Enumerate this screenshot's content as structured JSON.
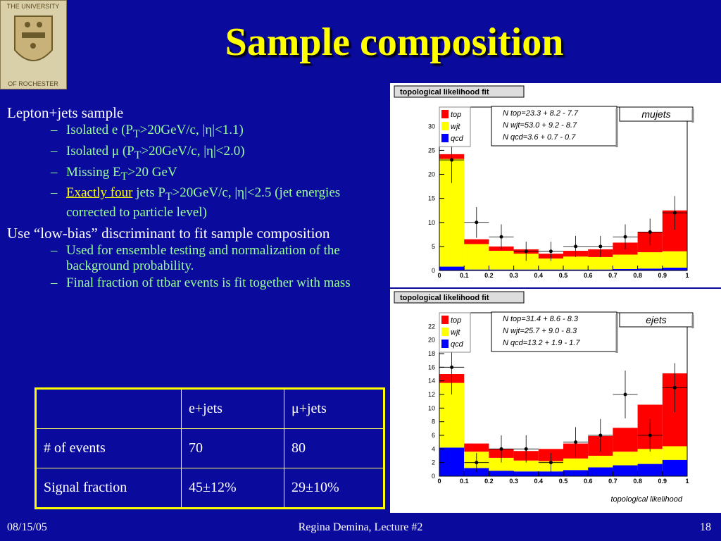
{
  "slide": {
    "title": "Sample composition",
    "logo_text_top": "THE UNIVERSITY",
    "logo_text_bottom": "OF ROCHESTER",
    "bullets": {
      "b1": "Lepton+jets sample",
      "b1_sub1": "Isolated e (P",
      "b1_sub1_sub": "T",
      "b1_sub1_rest": ">20GeV/c, |η|<1.1)",
      "b1_sub2": "Isolated μ (P",
      "b1_sub2_sub": "T",
      "b1_sub2_rest": ">20GeV/c, |η|<2.0)",
      "b1_sub3": "Missing E",
      "b1_sub3_sub": "T",
      "b1_sub3_rest": ">20 GeV",
      "b1_sub4_ul": "Exactly four",
      "b1_sub4": " jets P",
      "b1_sub4_sub": "T",
      "b1_sub4_rest": ">20GeV/c, |η|<2.5 (jet energies corrected to particle level)",
      "b2": "Use “low-bias” discriminant to fit sample composition",
      "b2_sub1": "Used for ensemble testing and normalization of the background probability.",
      "b2_sub2": "Final fraction of ttbar events is fit together with mass"
    },
    "table": {
      "header": [
        "",
        "e+jets",
        "μ+jets"
      ],
      "rows": [
        [
          "# of events",
          "70",
          "80"
        ],
        [
          "Signal fraction",
          "45±12%",
          "29±10%"
        ]
      ]
    },
    "footer": {
      "date": "08/15/05",
      "center": "Regina Demina, Lecture #2",
      "page": "18"
    }
  },
  "colors": {
    "background": "#0a0a9c",
    "title": "#ffff00",
    "subbullet": "#99ff99",
    "top": "#ff0000",
    "wjt": "#ffff00",
    "qcd": "#0000ff"
  },
  "chart_data": [
    {
      "type": "bar",
      "stacked": true,
      "title": "topological likelihood fit",
      "label": "mujets",
      "fit_text": [
        "N top=23.3 + 8.2 - 7.7",
        "N wjt=53.0 + 9.2 - 8.7",
        "N qcd=3.6 + 0.7 - 0.7"
      ],
      "legend": [
        "top",
        "wjt",
        "qcd"
      ],
      "x_ticks": [
        "0",
        "0.1",
        "0.2",
        "0.3",
        "0.4",
        "0.5",
        "0.6",
        "0.7",
        "0.8",
        "0.9",
        "1"
      ],
      "y_ticks": [
        "0",
        "5",
        "10",
        "15",
        "20",
        "25",
        "30"
      ],
      "xlim": [
        0,
        1
      ],
      "ylim": [
        0,
        34
      ],
      "bin_edges": [
        0,
        0.1,
        0.2,
        0.3,
        0.4,
        0.5,
        0.6,
        0.7,
        0.8,
        0.9,
        1.0
      ],
      "series": [
        {
          "name": "qcd",
          "values": [
            0.8,
            0.2,
            0.2,
            0.2,
            0.2,
            0.2,
            0.2,
            0.3,
            0.4,
            0.6
          ]
        },
        {
          "name": "wjt",
          "values": [
            22.4,
            5.3,
            3.9,
            3.3,
            2.3,
            2.7,
            2.6,
            3.0,
            3.4,
            3.4
          ]
        },
        {
          "name": "top",
          "values": [
            1.0,
            1.0,
            0.9,
            0.9,
            1.0,
            1.2,
            1.6,
            2.5,
            4.2,
            8.5
          ]
        }
      ],
      "data_points": {
        "x": [
          0.05,
          0.15,
          0.25,
          0.35,
          0.45,
          0.55,
          0.65,
          0.75,
          0.85,
          0.95
        ],
        "y": [
          23,
          10,
          7,
          4,
          4,
          5,
          5,
          7,
          8,
          12
        ],
        "err": [
          4.8,
          3.2,
          2.6,
          2.0,
          2.0,
          2.2,
          2.2,
          2.6,
          2.8,
          3.5
        ]
      }
    },
    {
      "type": "bar",
      "stacked": true,
      "title": "topological likelihood fit",
      "label": "ejets",
      "xlabel": "topological likelihood",
      "fit_text": [
        "N top=31.4 + 8.6 - 8.3",
        "N wjt=25.7 + 9.0 - 8.3",
        "N qcd=13.2 + 1.9 - 1.7"
      ],
      "legend": [
        "top",
        "wjt",
        "qcd"
      ],
      "x_ticks": [
        "0",
        "0.1",
        "0.2",
        "0.3",
        "0.4",
        "0.5",
        "0.6",
        "0.7",
        "0.8",
        "0.9",
        "1"
      ],
      "y_ticks": [
        "0",
        "2",
        "4",
        "6",
        "8",
        "10",
        "12",
        "14",
        "16",
        "18",
        "20",
        "22"
      ],
      "xlim": [
        0,
        1
      ],
      "ylim": [
        0,
        24
      ],
      "bin_edges": [
        0,
        0.1,
        0.2,
        0.3,
        0.4,
        0.5,
        0.6,
        0.7,
        0.8,
        0.9,
        1.0
      ],
      "series": [
        {
          "name": "qcd",
          "values": [
            4.2,
            1.2,
            0.8,
            0.7,
            0.7,
            0.9,
            1.3,
            1.6,
            1.8,
            2.4
          ]
        },
        {
          "name": "wjt",
          "values": [
            9.5,
            2.4,
            1.9,
            1.6,
            1.5,
            1.7,
            1.7,
            2.0,
            2.2,
            2.0
          ]
        },
        {
          "name": "top",
          "values": [
            1.3,
            1.2,
            1.3,
            1.4,
            1.8,
            2.2,
            2.9,
            3.5,
            6.5,
            10.7
          ]
        }
      ],
      "data_points": {
        "x": [
          0.05,
          0.15,
          0.25,
          0.35,
          0.45,
          0.55,
          0.65,
          0.75,
          0.85,
          0.95
        ],
        "y": [
          16,
          2,
          4,
          4,
          2,
          5,
          6,
          12,
          6,
          13
        ],
        "err": [
          4.0,
          1.4,
          2.0,
          2.0,
          1.4,
          2.2,
          2.4,
          3.5,
          2.4,
          3.6
        ]
      }
    }
  ]
}
